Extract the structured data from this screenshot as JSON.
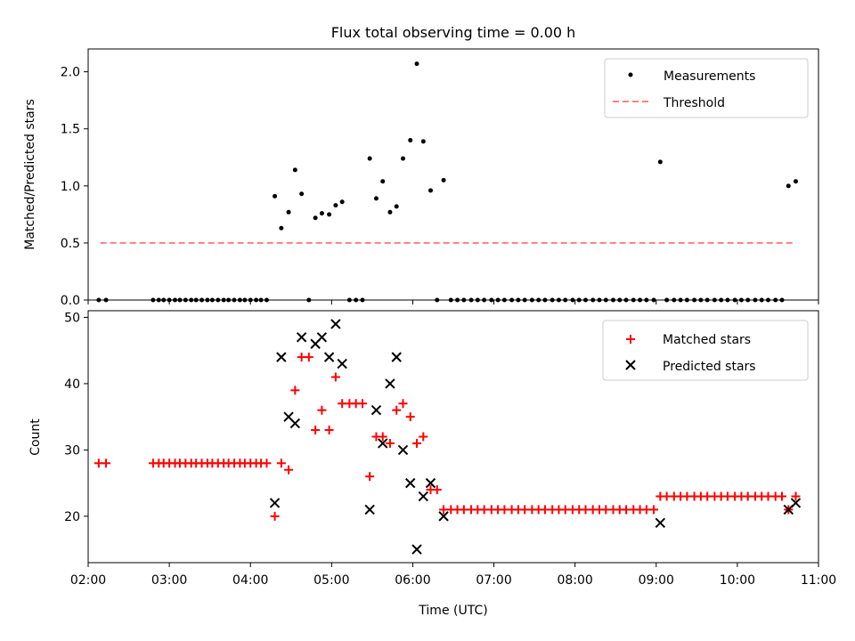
{
  "title": "Flux total observing time = 0.00 h",
  "colors": {
    "measure": "#000000",
    "threshold": "#ff7f7f",
    "matched": "#ff0000",
    "predicted": "#000000"
  },
  "chart_data": [
    {
      "type": "scatter",
      "ylabel": "Matched/Predicted stars",
      "ylim": [
        0,
        2.2
      ],
      "yticks": [
        "0.0",
        "0.5",
        "1.0",
        "1.5",
        "2.0"
      ],
      "xlim": [
        2.0,
        11.0
      ],
      "legend": {
        "position": "top-right",
        "entries": [
          "Measurements",
          "Threshold"
        ]
      },
      "threshold": {
        "name": "Threshold",
        "x": [
          2.15,
          10.72
        ],
        "y": 0.5
      },
      "series": [
        {
          "name": "Measurements",
          "points": [
            [
              2.13,
              0
            ],
            [
              2.22,
              0
            ],
            [
              2.8,
              0
            ],
            [
              2.87,
              0
            ],
            [
              2.93,
              0
            ],
            [
              3.0,
              0
            ],
            [
              3.07,
              0
            ],
            [
              3.13,
              0
            ],
            [
              3.2,
              0
            ],
            [
              3.27,
              0
            ],
            [
              3.33,
              0
            ],
            [
              3.4,
              0
            ],
            [
              3.47,
              0
            ],
            [
              3.53,
              0
            ],
            [
              3.6,
              0
            ],
            [
              3.67,
              0
            ],
            [
              3.73,
              0
            ],
            [
              3.8,
              0
            ],
            [
              3.87,
              0
            ],
            [
              3.93,
              0
            ],
            [
              4.0,
              0
            ],
            [
              4.07,
              0
            ],
            [
              4.13,
              0
            ],
            [
              4.2,
              0
            ],
            [
              4.3,
              0.91
            ],
            [
              4.38,
              0.63
            ],
            [
              4.47,
              0.77
            ],
            [
              4.55,
              1.14
            ],
            [
              4.63,
              0.93
            ],
            [
              4.72,
              0
            ],
            [
              4.8,
              0.72
            ],
            [
              4.88,
              0.76
            ],
            [
              4.97,
              0.75
            ],
            [
              5.05,
              0.83
            ],
            [
              5.13,
              0.86
            ],
            [
              5.22,
              0
            ],
            [
              5.3,
              0
            ],
            [
              5.38,
              0
            ],
            [
              5.47,
              1.24
            ],
            [
              5.55,
              0.89
            ],
            [
              5.63,
              1.04
            ],
            [
              5.72,
              0.77
            ],
            [
              5.8,
              0.82
            ],
            [
              5.88,
              1.24
            ],
            [
              5.97,
              1.4
            ],
            [
              6.05,
              2.07
            ],
            [
              6.13,
              1.39
            ],
            [
              6.22,
              0.96
            ],
            [
              6.3,
              0
            ],
            [
              6.38,
              1.05
            ],
            [
              6.47,
              0
            ],
            [
              6.55,
              0
            ],
            [
              6.63,
              0
            ],
            [
              6.72,
              0
            ],
            [
              6.8,
              0
            ],
            [
              6.88,
              0
            ],
            [
              6.97,
              0
            ],
            [
              7.05,
              0
            ],
            [
              7.13,
              0
            ],
            [
              7.22,
              0
            ],
            [
              7.3,
              0
            ],
            [
              7.38,
              0
            ],
            [
              7.47,
              0
            ],
            [
              7.55,
              0
            ],
            [
              7.63,
              0
            ],
            [
              7.72,
              0
            ],
            [
              7.8,
              0
            ],
            [
              7.88,
              0
            ],
            [
              7.97,
              0
            ],
            [
              8.05,
              0
            ],
            [
              8.13,
              0
            ],
            [
              8.22,
              0
            ],
            [
              8.3,
              0
            ],
            [
              8.38,
              0
            ],
            [
              8.47,
              0
            ],
            [
              8.55,
              0
            ],
            [
              8.63,
              0
            ],
            [
              8.72,
              0
            ],
            [
              8.8,
              0
            ],
            [
              8.88,
              0
            ],
            [
              8.97,
              0
            ],
            [
              9.05,
              1.21
            ],
            [
              9.13,
              0
            ],
            [
              9.22,
              0
            ],
            [
              9.3,
              0
            ],
            [
              9.38,
              0
            ],
            [
              9.47,
              0
            ],
            [
              9.55,
              0
            ],
            [
              9.63,
              0
            ],
            [
              9.72,
              0
            ],
            [
              9.8,
              0
            ],
            [
              9.88,
              0
            ],
            [
              9.97,
              0
            ],
            [
              10.05,
              0
            ],
            [
              10.13,
              0
            ],
            [
              10.22,
              0
            ],
            [
              10.3,
              0
            ],
            [
              10.38,
              0
            ],
            [
              10.47,
              0
            ],
            [
              10.55,
              0
            ],
            [
              10.63,
              1.0
            ],
            [
              10.72,
              1.04
            ]
          ]
        }
      ]
    },
    {
      "type": "scatter",
      "ylabel": "Count",
      "xlabel": "Time (UTC)",
      "ylim": [
        13,
        51
      ],
      "yticks": [
        "20",
        "30",
        "40",
        "50"
      ],
      "xlim": [
        2.0,
        11.0
      ],
      "xticks": [
        "02:00",
        "03:00",
        "04:00",
        "05:00",
        "06:00",
        "07:00",
        "08:00",
        "09:00",
        "10:00",
        "11:00"
      ],
      "legend": {
        "position": "top-right",
        "entries": [
          "Matched stars",
          "Predicted stars"
        ]
      },
      "series": [
        {
          "name": "Matched stars",
          "points": [
            [
              2.13,
              28
            ],
            [
              2.22,
              28
            ],
            [
              2.8,
              28
            ],
            [
              2.87,
              28
            ],
            [
              2.93,
              28
            ],
            [
              3.0,
              28
            ],
            [
              3.07,
              28
            ],
            [
              3.13,
              28
            ],
            [
              3.2,
              28
            ],
            [
              3.27,
              28
            ],
            [
              3.33,
              28
            ],
            [
              3.4,
              28
            ],
            [
              3.47,
              28
            ],
            [
              3.53,
              28
            ],
            [
              3.6,
              28
            ],
            [
              3.67,
              28
            ],
            [
              3.73,
              28
            ],
            [
              3.8,
              28
            ],
            [
              3.87,
              28
            ],
            [
              3.93,
              28
            ],
            [
              4.0,
              28
            ],
            [
              4.07,
              28
            ],
            [
              4.13,
              28
            ],
            [
              4.2,
              28
            ],
            [
              4.3,
              20
            ],
            [
              4.38,
              28
            ],
            [
              4.47,
              27
            ],
            [
              4.55,
              39
            ],
            [
              4.63,
              44
            ],
            [
              4.72,
              44
            ],
            [
              4.8,
              33
            ],
            [
              4.88,
              36
            ],
            [
              4.97,
              33
            ],
            [
              5.05,
              41
            ],
            [
              5.13,
              37
            ],
            [
              5.22,
              37
            ],
            [
              5.3,
              37
            ],
            [
              5.38,
              37
            ],
            [
              5.47,
              26
            ],
            [
              5.55,
              32
            ],
            [
              5.63,
              32
            ],
            [
              5.72,
              31
            ],
            [
              5.8,
              36
            ],
            [
              5.88,
              37
            ],
            [
              5.97,
              35
            ],
            [
              6.05,
              31
            ],
            [
              6.13,
              32
            ],
            [
              6.22,
              24
            ],
            [
              6.3,
              24
            ],
            [
              6.38,
              21
            ],
            [
              6.47,
              21
            ],
            [
              6.55,
              21
            ],
            [
              6.63,
              21
            ],
            [
              6.72,
              21
            ],
            [
              6.8,
              21
            ],
            [
              6.88,
              21
            ],
            [
              6.97,
              21
            ],
            [
              7.05,
              21
            ],
            [
              7.13,
              21
            ],
            [
              7.22,
              21
            ],
            [
              7.3,
              21
            ],
            [
              7.38,
              21
            ],
            [
              7.47,
              21
            ],
            [
              7.55,
              21
            ],
            [
              7.63,
              21
            ],
            [
              7.72,
              21
            ],
            [
              7.8,
              21
            ],
            [
              7.88,
              21
            ],
            [
              7.97,
              21
            ],
            [
              8.05,
              21
            ],
            [
              8.13,
              21
            ],
            [
              8.22,
              21
            ],
            [
              8.3,
              21
            ],
            [
              8.38,
              21
            ],
            [
              8.47,
              21
            ],
            [
              8.55,
              21
            ],
            [
              8.63,
              21
            ],
            [
              8.72,
              21
            ],
            [
              8.8,
              21
            ],
            [
              8.88,
              21
            ],
            [
              8.97,
              21
            ],
            [
              9.05,
              23
            ],
            [
              9.13,
              23
            ],
            [
              9.22,
              23
            ],
            [
              9.3,
              23
            ],
            [
              9.38,
              23
            ],
            [
              9.47,
              23
            ],
            [
              9.55,
              23
            ],
            [
              9.63,
              23
            ],
            [
              9.72,
              23
            ],
            [
              9.8,
              23
            ],
            [
              9.88,
              23
            ],
            [
              9.97,
              23
            ],
            [
              10.05,
              23
            ],
            [
              10.13,
              23
            ],
            [
              10.22,
              23
            ],
            [
              10.3,
              23
            ],
            [
              10.38,
              23
            ],
            [
              10.47,
              23
            ],
            [
              10.55,
              23
            ],
            [
              10.63,
              21
            ],
            [
              10.72,
              23
            ]
          ]
        },
        {
          "name": "Predicted stars",
          "points": [
            [
              4.3,
              22
            ],
            [
              4.38,
              44
            ],
            [
              4.47,
              35
            ],
            [
              4.55,
              34
            ],
            [
              4.63,
              47
            ],
            [
              4.8,
              46
            ],
            [
              4.88,
              47
            ],
            [
              4.97,
              44
            ],
            [
              5.05,
              49
            ],
            [
              5.13,
              43
            ],
            [
              5.47,
              21
            ],
            [
              5.55,
              36
            ],
            [
              5.63,
              31
            ],
            [
              5.72,
              40
            ],
            [
              5.8,
              44
            ],
            [
              5.88,
              30
            ],
            [
              5.97,
              25
            ],
            [
              6.05,
              15
            ],
            [
              6.13,
              23
            ],
            [
              6.22,
              25
            ],
            [
              6.38,
              20
            ],
            [
              9.05,
              19
            ],
            [
              10.63,
              21
            ],
            [
              10.72,
              22
            ]
          ]
        }
      ]
    }
  ]
}
